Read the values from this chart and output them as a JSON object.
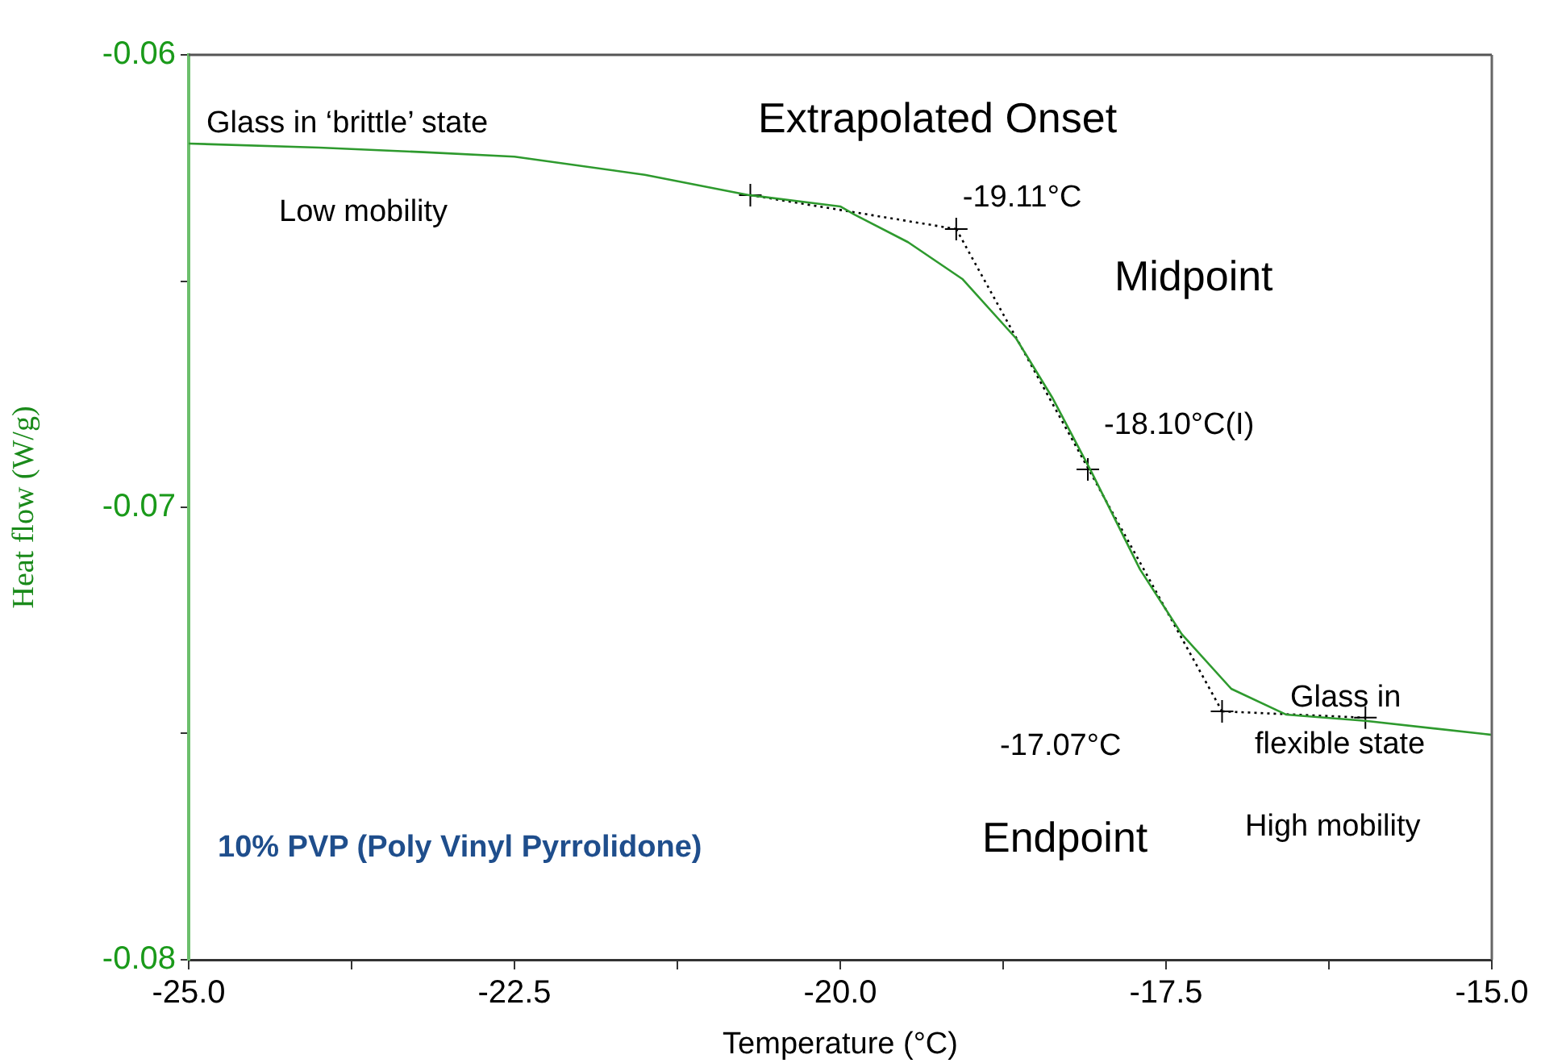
{
  "chart_data": {
    "type": "line",
    "xlabel": "Temperature (°C)",
    "ylabel": "Heat flow (W/g)",
    "xlim": [
      -25,
      -15
    ],
    "ylim": [
      -0.08,
      -0.06
    ],
    "xticks": [
      {
        "value": -25,
        "label": "-25.0"
      },
      {
        "value": -23.75,
        "label": null
      },
      {
        "value": -22.5,
        "label": "-22.5"
      },
      {
        "value": -21.25,
        "label": null
      },
      {
        "value": -20,
        "label": "-20.0"
      },
      {
        "value": -18.75,
        "label": null
      },
      {
        "value": -17.5,
        "label": "-17.5"
      },
      {
        "value": -16.25,
        "label": null
      },
      {
        "value": -15,
        "label": "-15.0"
      }
    ],
    "yticks": [
      -0.06,
      {
        "value": -0.065,
        "label": null
      },
      -0.07,
      {
        "value": -0.075,
        "label": null
      },
      -0.08
    ],
    "grid": false,
    "legend": false,
    "line_style": "solid",
    "marker": "none",
    "series": [
      {
        "color": "#2e9a2e",
        "x": [
          -25,
          -24,
          -23.2,
          -22.5,
          -21.5,
          -20.7,
          -20,
          -19.89,
          -19.48,
          -19.06,
          -18.65,
          -18.37,
          -18.07,
          -17.7,
          -17.38,
          -17,
          -16.58,
          -15.97,
          -15.06,
          -15
        ],
        "values": [
          -0.06196,
          -0.06205,
          -0.06215,
          -0.06225,
          -0.06265,
          -0.0631,
          -0.06335,
          -0.06353,
          -0.06414,
          -0.06496,
          -0.06627,
          -0.06759,
          -0.06923,
          -0.07137,
          -0.0728,
          -0.07401,
          -0.07458,
          -0.07472,
          -0.07501,
          -0.07503
        ]
      },
      {
        "color": "#000000",
        "line_style": "dotted",
        "x": [
          -20.69,
          -19.11
        ],
        "values": [
          -0.0631,
          -0.06385
        ]
      },
      {
        "color": "#000000",
        "line_style": "dotted",
        "x": [
          -19.11,
          -17.07
        ],
        "values": [
          -0.06385,
          -0.07451
        ]
      },
      {
        "color": "#000000",
        "line_style": "dotted",
        "x": [
          -17.07,
          -15.97
        ],
        "values": [
          -0.07451,
          -0.07465
        ]
      },
      {
        "type": "scatter",
        "color": "#000000",
        "marker": "cross",
        "x": [
          -20.69,
          -19.11,
          -18.1,
          -17.07,
          -15.97
        ],
        "values": [
          -0.0631,
          -0.06385,
          -0.06916,
          -0.07451,
          -0.07465
        ]
      }
    ],
    "annotations": [
      "Glass in ‘brittle’ state",
      "Low mobility",
      "Extrapolated Onset",
      {
        "text": "-19.11°C",
        "x": -19.11,
        "y": -0.06385
      },
      "Midpoint",
      {
        "text": "-18.10°C(I)",
        "x": -18.1,
        "y": -0.06916
      },
      "-17.07°C",
      "Glass in\nflexible state",
      "Endpoint",
      "High mobility",
      "10% PVP (Poly Vinyl Pyrrolidone)"
    ]
  }
}
